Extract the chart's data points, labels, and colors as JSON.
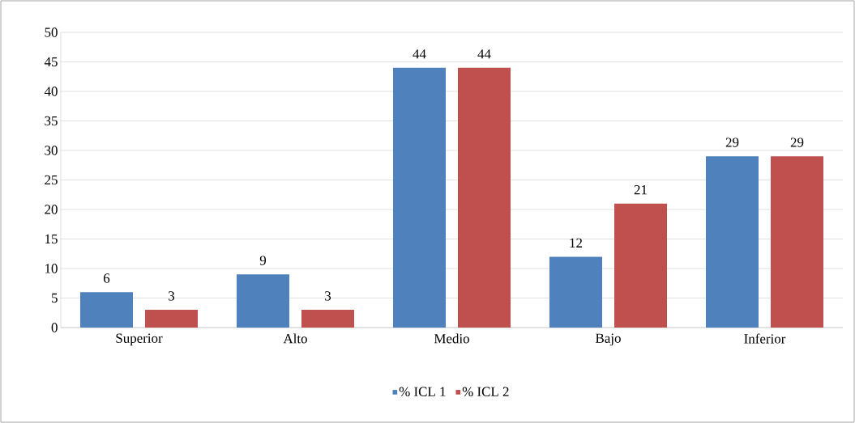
{
  "chart_data": {
    "type": "bar",
    "categories": [
      "Superior",
      "Alto",
      "Medio",
      "Bajo",
      "Inferior"
    ],
    "series": [
      {
        "name": "% ICL 1",
        "color": "#4f81bd",
        "values": [
          6,
          9,
          44,
          12,
          29
        ]
      },
      {
        "name": "% ICL 2",
        "color": "#c0504d",
        "values": [
          3,
          3,
          44,
          21,
          29
        ]
      }
    ],
    "ylim": [
      0,
      50
    ],
    "yticks": [
      0,
      5,
      10,
      15,
      20,
      25,
      30,
      35,
      40,
      45,
      50
    ],
    "grid": "y",
    "legend": "bottom",
    "data_labels": true
  }
}
